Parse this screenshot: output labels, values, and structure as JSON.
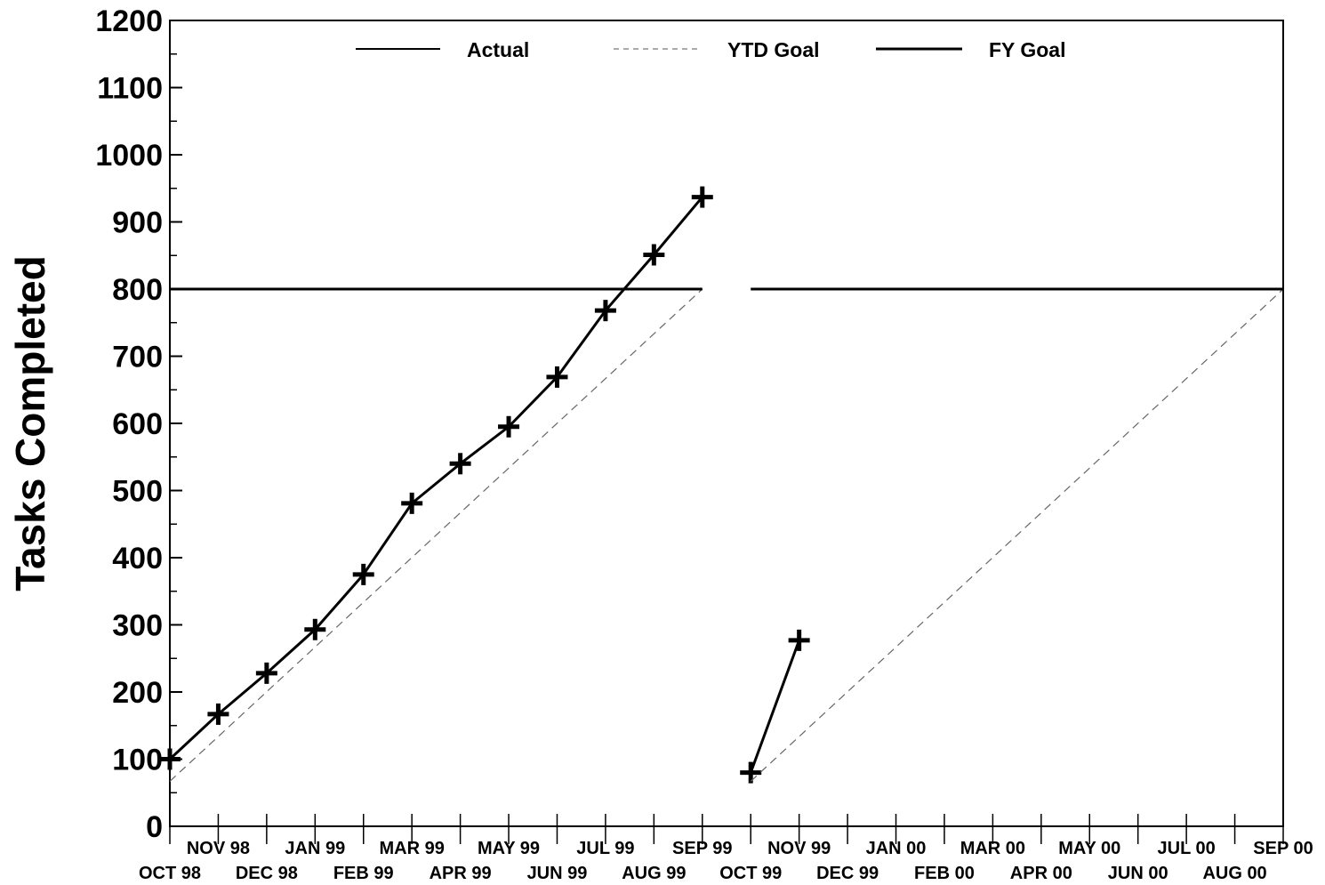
{
  "chart_data": {
    "type": "line",
    "ylabel": "Tasks Completed",
    "xlabel": "",
    "ylim": [
      0,
      1200
    ],
    "yticks": [
      0,
      100,
      200,
      300,
      400,
      500,
      600,
      700,
      800,
      900,
      1000,
      1100,
      1200
    ],
    "yminor_step": 50,
    "categories": [
      "OCT 98",
      "NOV 98",
      "DEC 98",
      "JAN 99",
      "FEB 99",
      "MAR 99",
      "APR 99",
      "MAY 99",
      "JUN 99",
      "JUL 99",
      "AUG 99",
      "SEP 99",
      "OCT 99",
      "NOV 99",
      "DEC 99",
      "JAN 00",
      "FEB 00",
      "MAR 00",
      "APR 00",
      "MAY 00",
      "JUN 00",
      "JUL 00",
      "AUG 00",
      "SEP 00"
    ],
    "legend": {
      "placement": "top",
      "entries": [
        "Actual",
        "YTD Goal",
        "FY Goal"
      ]
    },
    "grid": false,
    "series": [
      {
        "name": "Actual",
        "style": "solid-with-plus-markers",
        "segments": [
          {
            "x": [
              "OCT 98",
              "NOV 98",
              "DEC 98",
              "JAN 99",
              "FEB 99",
              "MAR 99",
              "APR 99",
              "MAY 99",
              "JUN 99",
              "JUL 99",
              "AUG 99",
              "SEP 99"
            ],
            "values": [
              100,
              167,
              228,
              293,
              375,
              481,
              540,
              595,
              669,
              768,
              851,
              937
            ]
          },
          {
            "x": [
              "OCT 99",
              "NOV 99"
            ],
            "values": [
              80,
              277
            ]
          }
        ]
      },
      {
        "name": "YTD Goal",
        "style": "dashed",
        "segments": [
          {
            "x": [
              "OCT 98",
              "SEP 99"
            ],
            "values": [
              67,
              800
            ]
          },
          {
            "x": [
              "OCT 99",
              "SEP 00"
            ],
            "values": [
              67,
              800
            ]
          }
        ]
      },
      {
        "name": "FY Goal",
        "style": "solid-thick",
        "segments": [
          {
            "x": [
              "OCT 98",
              "SEP 99"
            ],
            "values": [
              800,
              800
            ]
          },
          {
            "x": [
              "OCT 99",
              "SEP 00"
            ],
            "values": [
              800,
              800
            ]
          }
        ]
      }
    ]
  }
}
